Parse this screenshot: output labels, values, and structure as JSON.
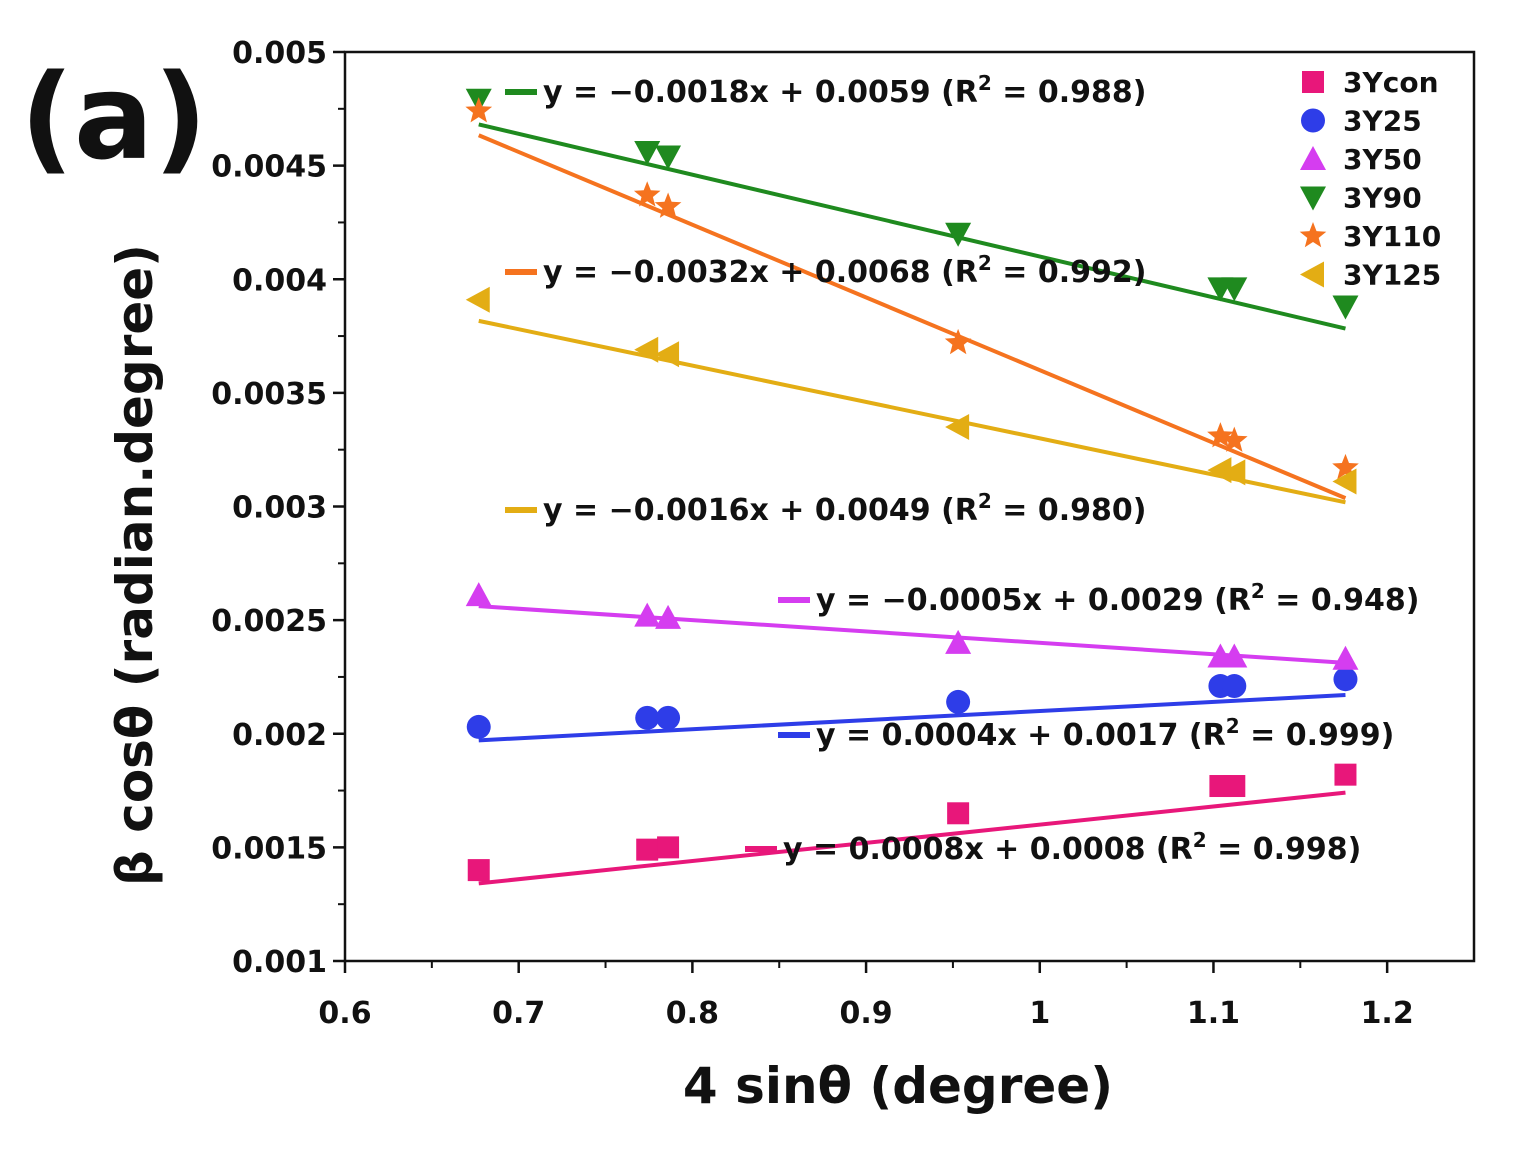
{
  "panel_label": "(a)",
  "chart_data": {
    "type": "scatter",
    "xlabel": "4 sinθ (degree)",
    "ylabel": "β cosθ (radian.degree)",
    "xlim": [
      0.6,
      1.25
    ],
    "ylim": [
      0.001,
      0.005
    ],
    "x_ticks": [
      "0.6",
      "0.7",
      "0.8",
      "0.9",
      "1",
      "1.1",
      "1.2"
    ],
    "y_ticks": [
      "0.001",
      "0.0015",
      "0.002",
      "0.0025",
      "0.003",
      "0.0035",
      "0.004",
      "0.0045",
      "0.005"
    ],
    "legend_position": "top-right",
    "series": [
      {
        "name": "3Ycon",
        "marker": "square",
        "color": "#e8177a",
        "x": [
          0.677,
          0.774,
          0.786,
          0.953,
          1.104,
          1.112,
          1.176
        ],
        "y": [
          0.0014,
          0.00149,
          0.0015,
          0.00165,
          0.00177,
          0.00177,
          0.00182
        ],
        "fit": {
          "slope": 0.0008,
          "intercept": 0.0008,
          "x_range": [
            0.677,
            1.176
          ]
        },
        "equation": {
          "eq": "y = 0.0008x + 0.0008",
          "r2_pre": "(R",
          "r2_sup": "2",
          "r2_post": " = 0.998)"
        }
      },
      {
        "name": "3Y25",
        "marker": "circle",
        "color": "#2e3de8",
        "x": [
          0.677,
          0.774,
          0.786,
          0.953,
          1.104,
          1.112,
          1.176
        ],
        "y": [
          0.00203,
          0.00207,
          0.00207,
          0.00214,
          0.00221,
          0.00221,
          0.00224
        ],
        "fit": {
          "slope": 0.0004,
          "intercept": 0.0017,
          "x_range": [
            0.677,
            1.176
          ]
        },
        "equation": {
          "eq": "y = 0.0004x + 0.0017",
          "r2_pre": "(R",
          "r2_sup": "2",
          "r2_post": " = 0.999)"
        }
      },
      {
        "name": "3Y50",
        "marker": "triangle-up",
        "color": "#d53df0",
        "x": [
          0.677,
          0.774,
          0.786,
          0.953,
          1.104,
          1.112,
          1.176
        ],
        "y": [
          0.00261,
          0.00252,
          0.00251,
          0.0024,
          0.00234,
          0.00234,
          0.00233
        ],
        "fit": {
          "slope": -0.0005,
          "intercept": 0.0029,
          "x_range": [
            0.677,
            1.176
          ]
        },
        "equation": {
          "eq": "y = −0.0005x + 0.0029",
          "r2_pre": "(R",
          "r2_sup": "2",
          "r2_post": " = 0.948)"
        }
      },
      {
        "name": "3Y90",
        "marker": "triangle-down",
        "color": "#1f8a1f",
        "x": [
          0.677,
          0.774,
          0.786,
          0.953,
          1.104,
          1.112,
          1.176
        ],
        "y": [
          0.00479,
          0.00456,
          0.00454,
          0.0042,
          0.00396,
          0.00396,
          0.00388
        ],
        "fit": {
          "slope": -0.0018,
          "intercept": 0.0059,
          "x_range": [
            0.677,
            1.176
          ]
        },
        "equation": {
          "eq": "y = −0.0018x + 0.0059",
          "r2_pre": "(R",
          "r2_sup": "2",
          "r2_post": " = 0.988)"
        }
      },
      {
        "name": "3Y110",
        "marker": "star",
        "color": "#f5731f",
        "x": [
          0.677,
          0.774,
          0.786,
          0.953,
          1.104,
          1.112,
          1.176
        ],
        "y": [
          0.00474,
          0.00437,
          0.00432,
          0.00372,
          0.00331,
          0.00329,
          0.00317
        ],
        "fit": {
          "slope": -0.0032,
          "intercept": 0.0068,
          "x_range": [
            0.677,
            1.176
          ]
        },
        "equation": {
          "eq": "y = −0.0032x + 0.0068",
          "r2_pre": "(R",
          "r2_sup": "2",
          "r2_post": " = 0.992)"
        }
      },
      {
        "name": "3Y125",
        "marker": "triangle-left",
        "color": "#e3ad14",
        "x": [
          0.677,
          0.774,
          0.786,
          0.953,
          1.104,
          1.112,
          1.176
        ],
        "y": [
          0.00391,
          0.00369,
          0.00367,
          0.00335,
          0.00316,
          0.00315,
          0.00311
        ],
        "fit": {
          "slope": -0.0016,
          "intercept": 0.0049,
          "x_range": [
            0.677,
            1.176
          ]
        },
        "equation": {
          "eq": "y = −0.0016x + 0.0049",
          "r2_pre": "(R",
          "r2_sup": "2",
          "r2_post": " = 0.980)"
        }
      }
    ]
  }
}
